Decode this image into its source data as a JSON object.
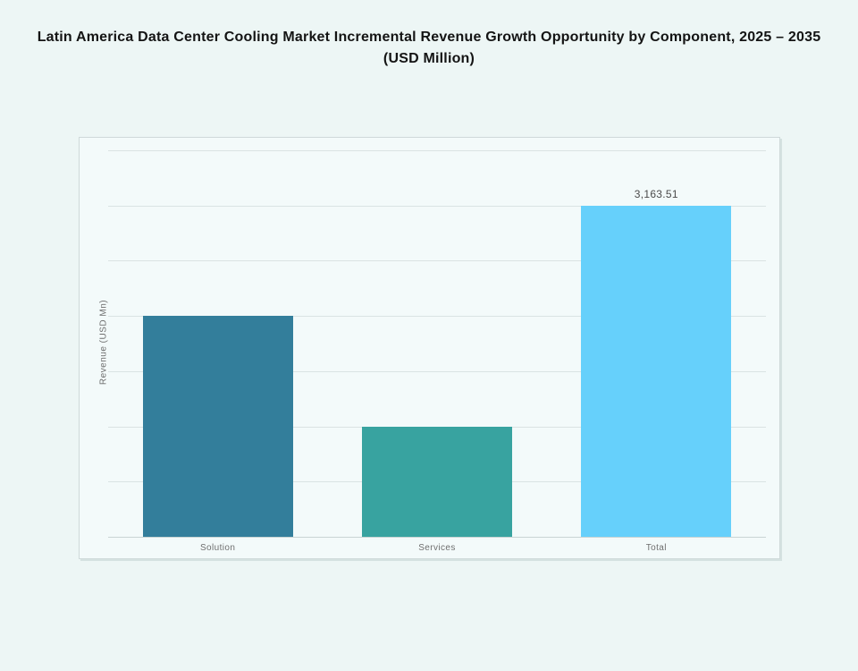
{
  "page": {
    "background_color": "#edf6f5",
    "panel_color": "#f3fafa"
  },
  "chart_data": {
    "type": "bar",
    "title": "Latin America Data Center Cooling Market Incremental Revenue Growth Opportunity by Component, 2025 – 2035 (USD Million)",
    "categories": [
      "Solution",
      "Services",
      "Total"
    ],
    "values": [
      2109.0,
      1054.5,
      3163.51
    ],
    "bar_labels": [
      "",
      "",
      "3,163.51"
    ],
    "bar_colors": [
      "#337e9b",
      "#38a3a0",
      "#66d0fb"
    ],
    "xlabel": "",
    "ylabel": "Revenue (USD Mn)",
    "ylim": [
      0,
      3690.8
    ],
    "gridline_count": 7,
    "grid": true,
    "legend": false,
    "y_tick_labels_visible": false
  }
}
